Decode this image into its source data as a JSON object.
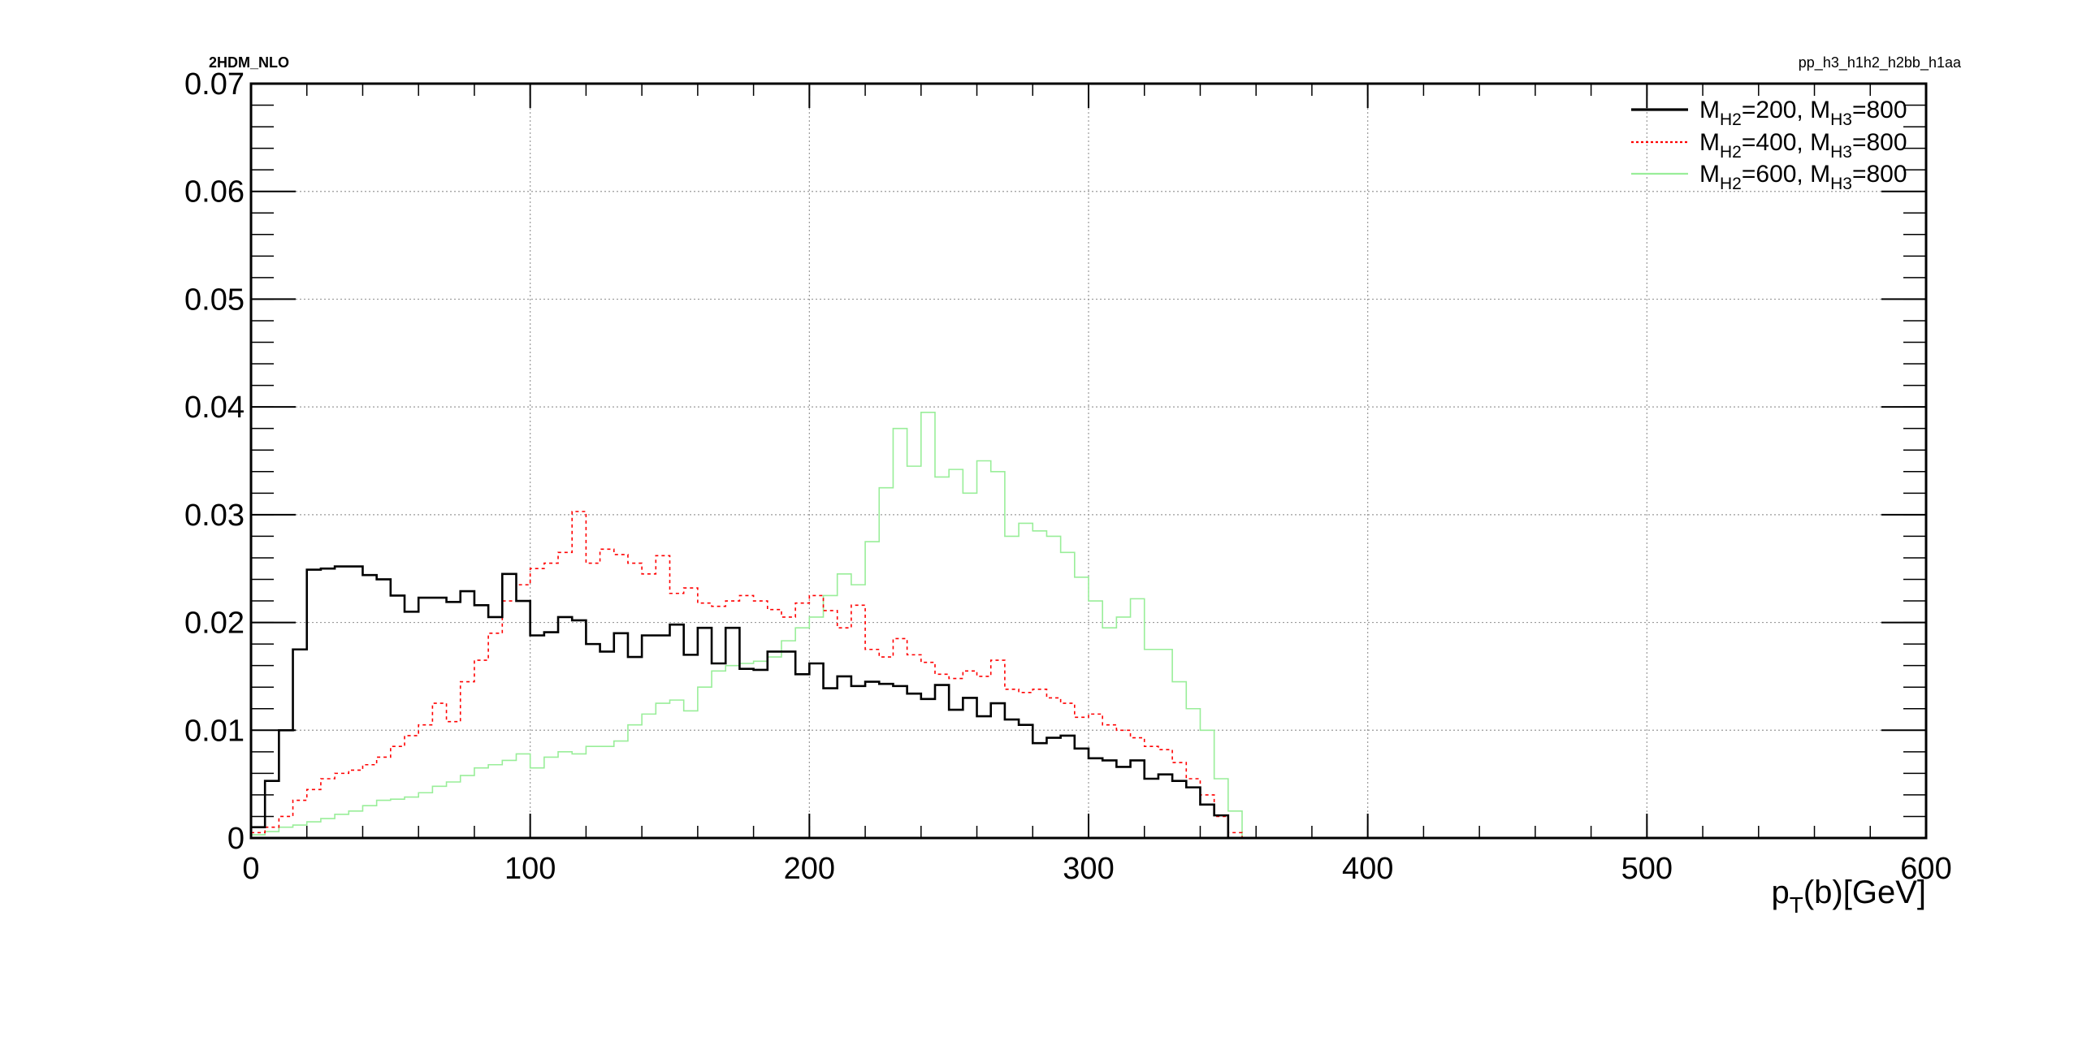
{
  "header": {
    "left_label": "2HDM_NLO",
    "right_label": "pp_h3_h1h2_h2bb_h1aa"
  },
  "chart_data": {
    "type": "line",
    "title": "",
    "xlabel": {
      "main": "p",
      "sub": "T",
      "rest": "(b)[GeV]"
    },
    "ylabel": "",
    "xlim": [
      0,
      600
    ],
    "ylim": [
      0,
      0.07
    ],
    "xticks": [
      "0",
      "100",
      "200",
      "300",
      "400",
      "500",
      "600"
    ],
    "yticks": [
      "0",
      "0.01",
      "0.02",
      "0.03",
      "0.04",
      "0.05",
      "0.06",
      "0.07"
    ],
    "grid": true,
    "legend_position": "top-right",
    "bin_width": 5,
    "x_start": 0,
    "series": [
      {
        "name": "M_{H2}=200, M_{H3}=800",
        "legend": {
          "p1": "M",
          "s1": "H2",
          "p2": "=200, M",
          "s2": "H3",
          "p3": "=800"
        },
        "color": "#000000",
        "dash": "",
        "width": 2.6,
        "values": [
          0.001,
          0.0053,
          0.01,
          0.0175,
          0.0249,
          0.025,
          0.0252,
          0.0252,
          0.0244,
          0.024,
          0.0225,
          0.021,
          0.0223,
          0.0223,
          0.0219,
          0.0229,
          0.0216,
          0.0205,
          0.0245,
          0.022,
          0.0188,
          0.0191,
          0.0205,
          0.0202,
          0.018,
          0.0173,
          0.019,
          0.0168,
          0.0188,
          0.0188,
          0.0198,
          0.017,
          0.0195,
          0.0162,
          0.0195,
          0.0157,
          0.0156,
          0.0173,
          0.0173,
          0.0152,
          0.0162,
          0.0139,
          0.015,
          0.0141,
          0.0145,
          0.0143,
          0.0141,
          0.0134,
          0.0129,
          0.0142,
          0.0119,
          0.013,
          0.0113,
          0.0125,
          0.011,
          0.0105,
          0.0088,
          0.0093,
          0.0095,
          0.0083,
          0.0074,
          0.0072,
          0.0066,
          0.0072,
          0.0055,
          0.0059,
          0.0053,
          0.0047,
          0.0031,
          0.0021,
          0.0,
          0.0
        ]
      },
      {
        "name": "M_{H2}=400, M_{H3}=800",
        "legend": {
          "p1": "M",
          "s1": "H2",
          "p2": "=400, M",
          "s2": "H3",
          "p3": "=800"
        },
        "color": "#ff0000",
        "dash": "4,4",
        "width": 1.6,
        "values": [
          0.0005,
          0.001,
          0.002,
          0.0035,
          0.0045,
          0.0055,
          0.006,
          0.0063,
          0.0068,
          0.0075,
          0.0085,
          0.0095,
          0.0105,
          0.0125,
          0.0108,
          0.0145,
          0.0165,
          0.019,
          0.022,
          0.0235,
          0.025,
          0.0255,
          0.0265,
          0.0303,
          0.0255,
          0.0268,
          0.0263,
          0.0255,
          0.0245,
          0.0262,
          0.0227,
          0.0232,
          0.0218,
          0.0215,
          0.022,
          0.0225,
          0.022,
          0.0212,
          0.0205,
          0.0218,
          0.0225,
          0.0211,
          0.0195,
          0.0216,
          0.0175,
          0.0168,
          0.0185,
          0.017,
          0.0163,
          0.0152,
          0.0148,
          0.0155,
          0.015,
          0.0165,
          0.0138,
          0.0135,
          0.0138,
          0.013,
          0.0125,
          0.0112,
          0.0115,
          0.0105,
          0.01,
          0.0093,
          0.0085,
          0.0082,
          0.007,
          0.0055,
          0.004,
          0.002,
          0.0005,
          0.0
        ]
      },
      {
        "name": "M_{H2}=600, M_{H3}=800",
        "legend": {
          "p1": "M",
          "s1": "H2",
          "p2": "=600, M",
          "s2": "H3",
          "p3": "=800"
        },
        "color": "#99ee99",
        "dash": "",
        "width": 1.6,
        "values": [
          0.0003,
          0.0006,
          0.001,
          0.0012,
          0.0015,
          0.0018,
          0.0022,
          0.0025,
          0.003,
          0.0035,
          0.0036,
          0.0038,
          0.0042,
          0.0048,
          0.0052,
          0.0058,
          0.0065,
          0.0068,
          0.0072,
          0.0078,
          0.0065,
          0.0075,
          0.008,
          0.0078,
          0.0085,
          0.0085,
          0.009,
          0.0105,
          0.0115,
          0.0125,
          0.0128,
          0.0118,
          0.014,
          0.0155,
          0.016,
          0.0162,
          0.0164,
          0.0168,
          0.0183,
          0.0195,
          0.0205,
          0.0225,
          0.0245,
          0.0235,
          0.0275,
          0.0325,
          0.038,
          0.0345,
          0.0395,
          0.0335,
          0.0342,
          0.032,
          0.035,
          0.034,
          0.028,
          0.0292,
          0.0285,
          0.028,
          0.0265,
          0.0242,
          0.022,
          0.0195,
          0.0205,
          0.0222,
          0.0175,
          0.0175,
          0.0145,
          0.012,
          0.01,
          0.0055,
          0.0025,
          0.0
        ]
      }
    ]
  }
}
